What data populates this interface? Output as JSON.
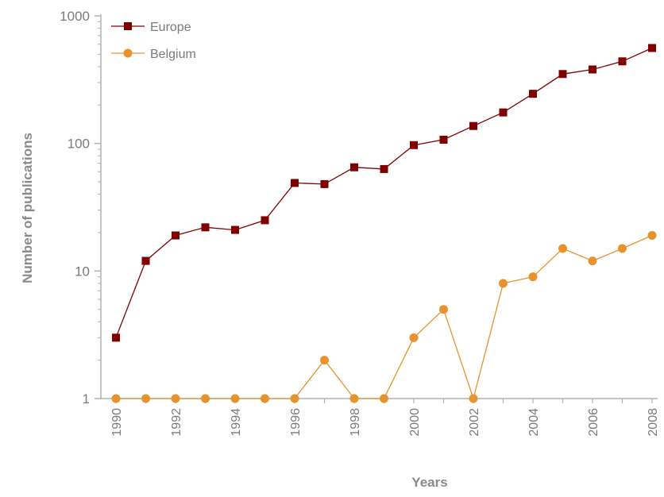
{
  "chart_data": {
    "type": "line",
    "title": "",
    "xlabel": "Years",
    "ylabel": "Number of publications",
    "y_scale": "log",
    "ylim": [
      1,
      1000
    ],
    "xlim": [
      1990,
      2008
    ],
    "grid": false,
    "legend_position": "top-left",
    "x": [
      1990,
      1991,
      1992,
      1993,
      1994,
      1995,
      1996,
      1997,
      1998,
      1999,
      2000,
      2001,
      2002,
      2003,
      2004,
      2005,
      2006,
      2007,
      2008
    ],
    "x_tick_labels": [
      "1990",
      "1992",
      "1994",
      "1996",
      "1998",
      "2000",
      "2002",
      "2004",
      "2006",
      "2008"
    ],
    "y_tick_labels": [
      "1",
      "10",
      "100",
      "1000"
    ],
    "y_ticks": [
      1,
      10,
      100,
      1000
    ],
    "series": [
      {
        "name": "Europe",
        "color": "#800000",
        "marker": "square",
        "values": [
          3,
          12,
          19,
          22,
          21,
          25,
          49,
          48,
          65,
          63,
          97,
          107,
          137,
          175,
          245,
          350,
          380,
          440,
          560
        ]
      },
      {
        "name": "Belgium",
        "color": "#E8922E",
        "marker": "circle",
        "values": [
          1,
          1,
          1,
          1,
          1,
          1,
          1,
          2,
          1,
          1,
          3,
          5,
          1,
          8,
          9,
          15,
          12,
          15,
          19
        ]
      }
    ]
  }
}
